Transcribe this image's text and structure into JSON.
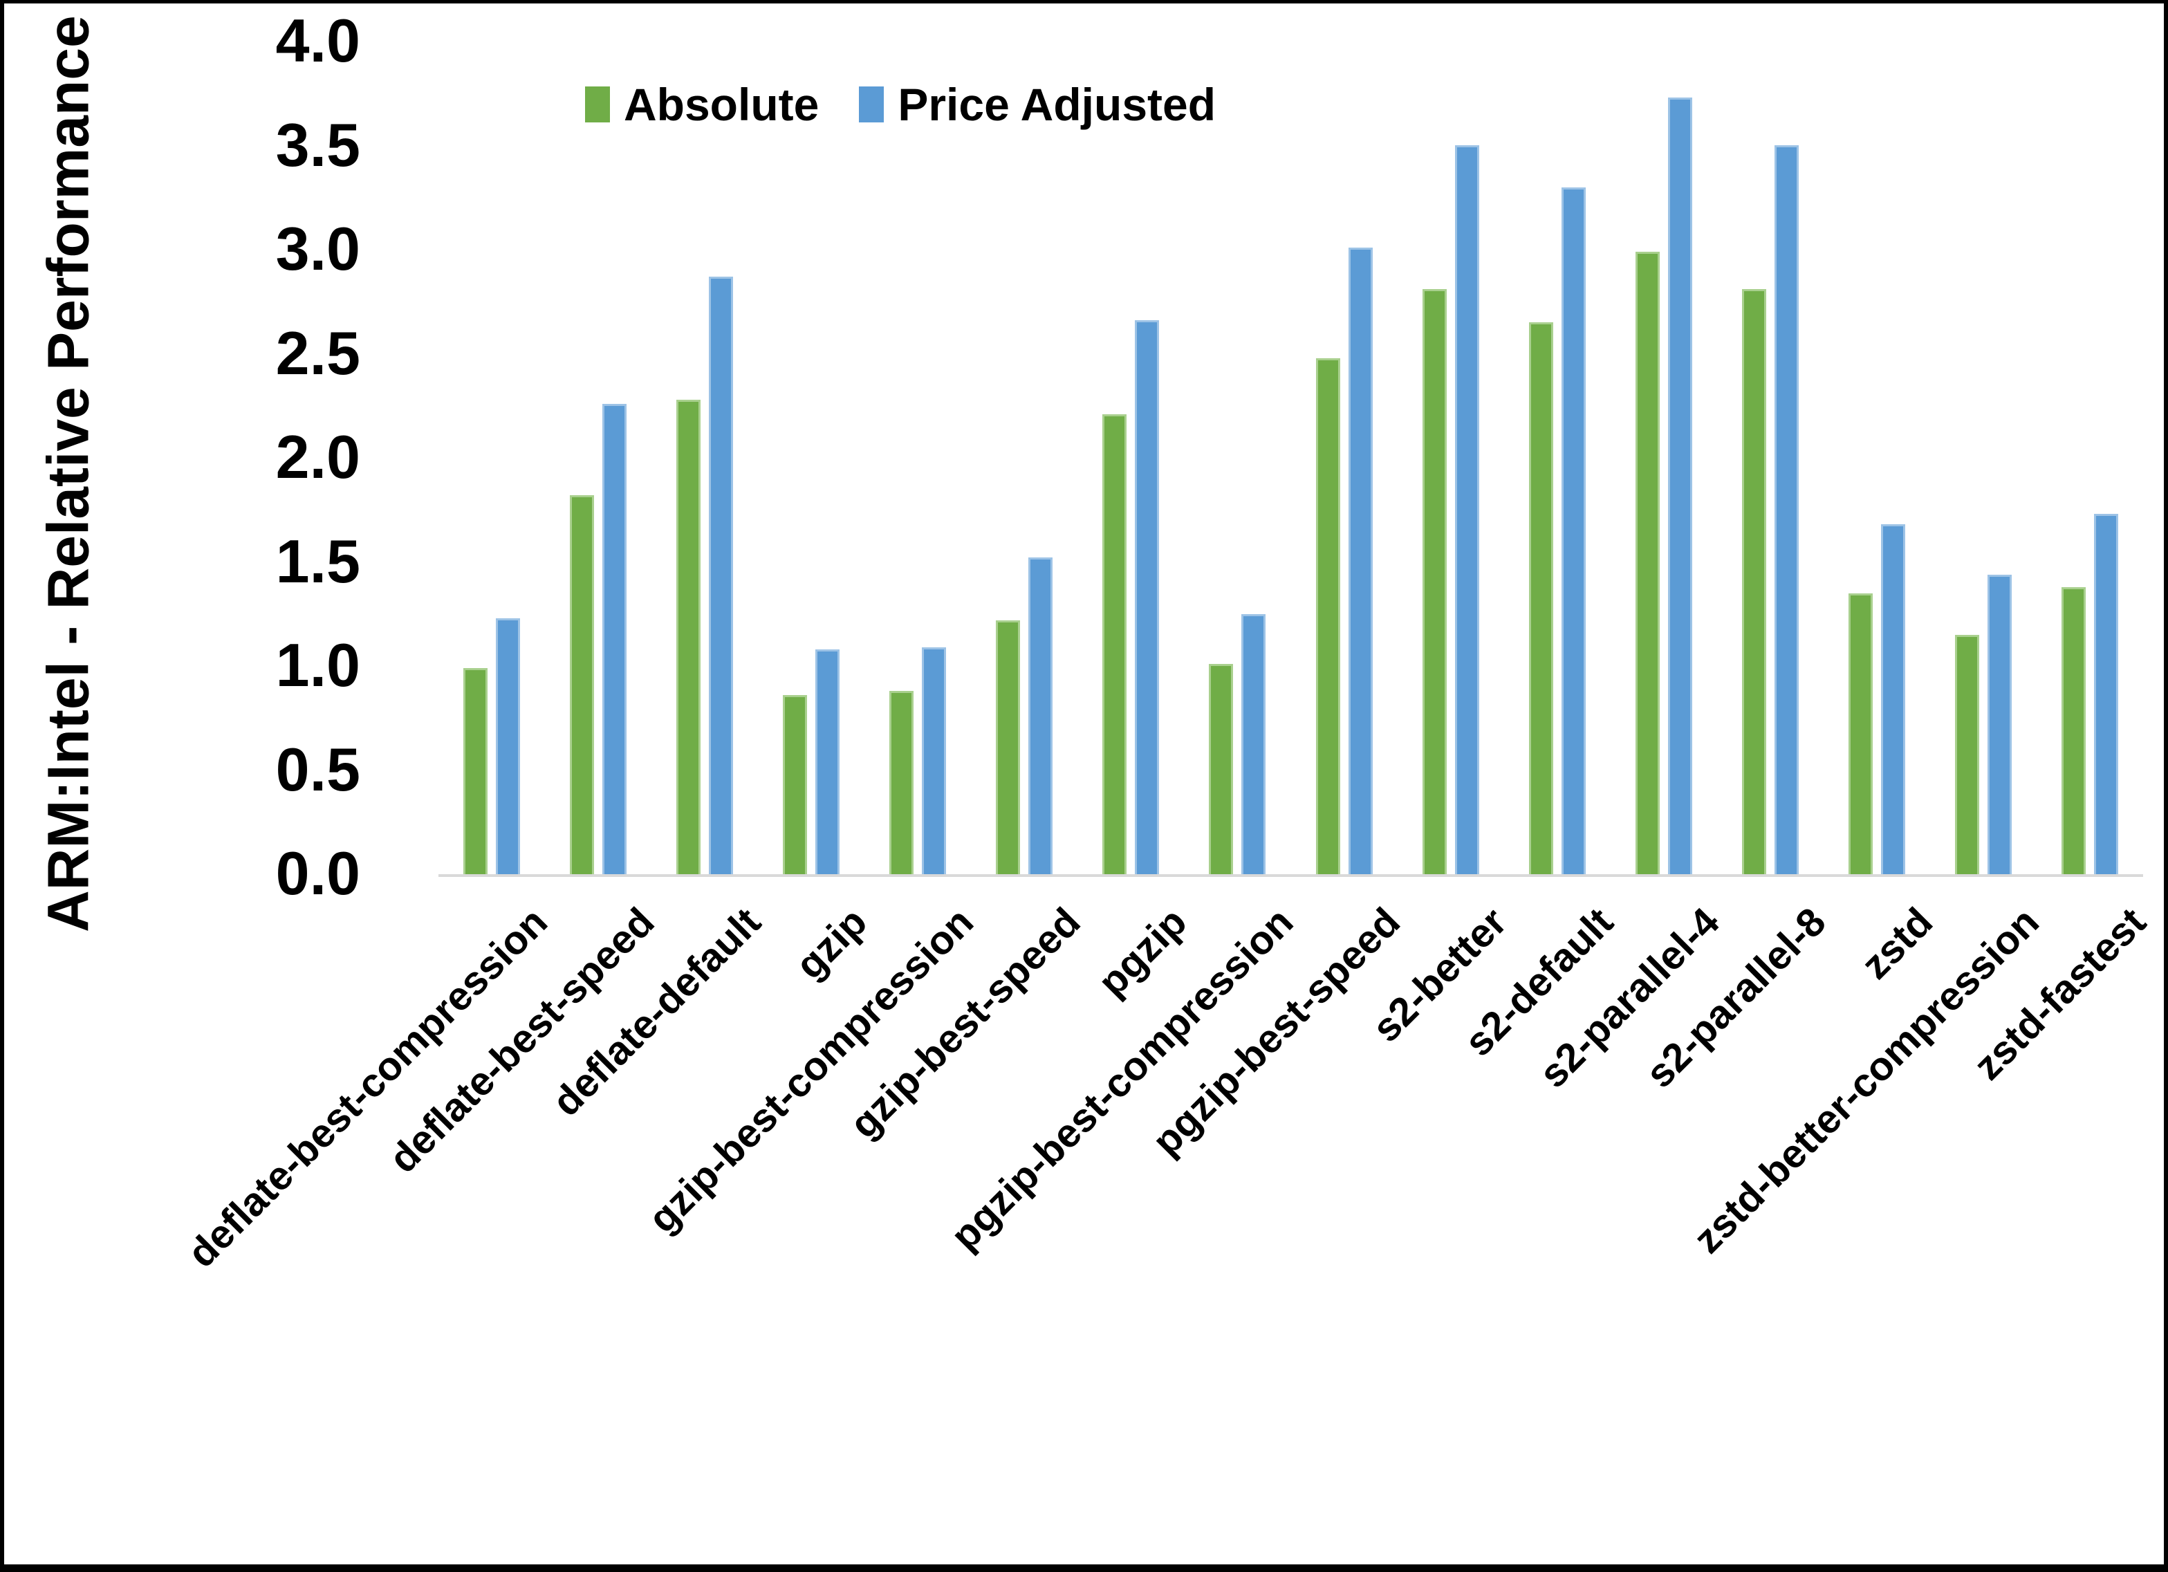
{
  "chart_data": {
    "type": "bar",
    "title": "",
    "ylabel": "ARM:Intel - Relative Performance",
    "xlabel": "",
    "ylim": [
      0.0,
      4.0
    ],
    "ytick_labels": [
      "4.0",
      "3.5",
      "3.0",
      "2.5",
      "2.0",
      "1.5",
      "1.0",
      "0.5",
      "0.0"
    ],
    "grid": false,
    "legend_position": "top-center",
    "axis_line_color": "#d9d9d9",
    "text_color": "#000000",
    "background_color": "#ffffff",
    "frame_color": "#000000",
    "categories": [
      "deflate-best-compression",
      "deflate-best-speed",
      "deflate-default",
      "gzip",
      "gzip-best-compression",
      "gzip-best-speed",
      "pgzip",
      "pgzip-best-compression",
      "pgzip-best-speed",
      "s2-better",
      "s2-default",
      "s2-parallel-4",
      "s2-parallel-8",
      "zstd",
      "zstd-better-compression",
      "zstd-fastest"
    ],
    "series": [
      {
        "name": "Absolute",
        "color": "#70ad47",
        "edge_color": "#a9d08e",
        "values": [
          0.99,
          1.82,
          2.28,
          0.86,
          0.88,
          1.22,
          2.21,
          1.01,
          2.48,
          2.81,
          2.65,
          2.99,
          2.81,
          1.35,
          1.15,
          1.38
        ]
      },
      {
        "name": "Price Adjusted",
        "color": "#5b9bd5",
        "edge_color": "#9dc3e6",
        "values": [
          1.23,
          2.26,
          2.87,
          1.08,
          1.09,
          1.52,
          2.66,
          1.25,
          3.01,
          3.5,
          3.3,
          3.73,
          3.5,
          1.68,
          1.44,
          1.73
        ]
      }
    ]
  }
}
